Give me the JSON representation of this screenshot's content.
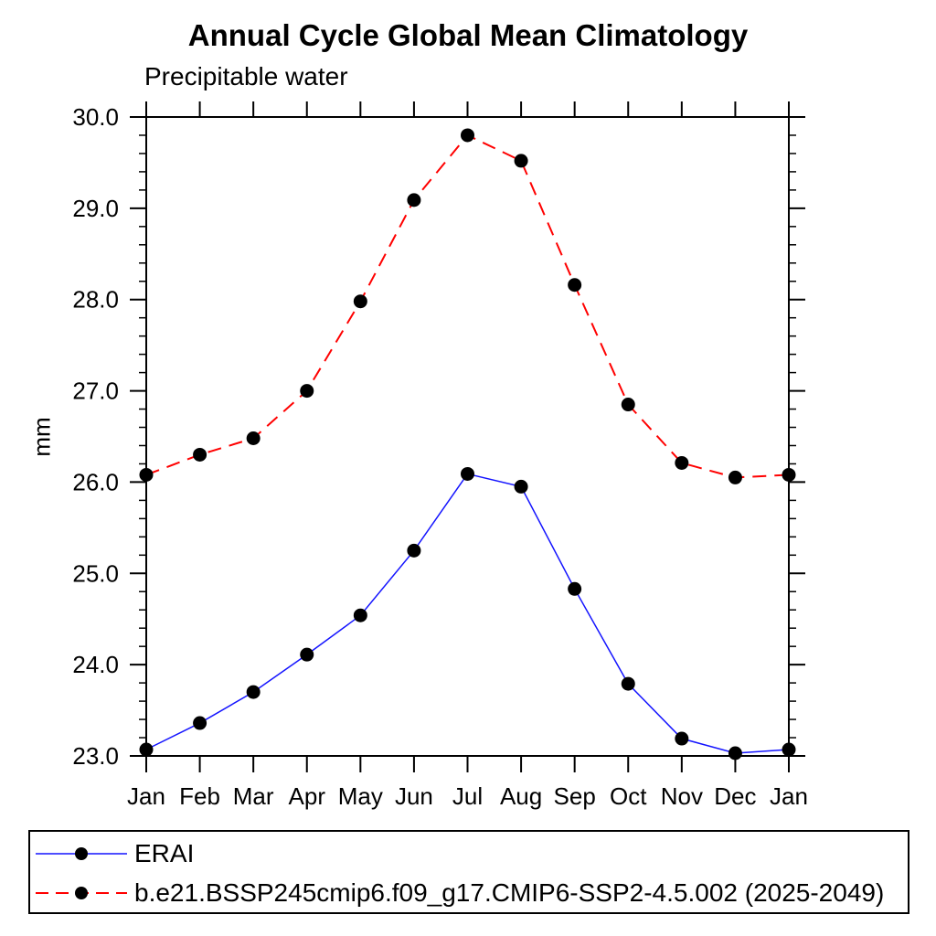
{
  "title": "Annual Cycle Global Mean Climatology",
  "subtitle": "Precipitable water",
  "chart_data": {
    "type": "line",
    "title": "Annual Cycle Global Mean Climatology",
    "subtitle": "Precipitable water",
    "xlabel": "",
    "ylabel": "mm",
    "categories": [
      "Jan",
      "Feb",
      "Mar",
      "Apr",
      "May",
      "Jun",
      "Jul",
      "Aug",
      "Sep",
      "Oct",
      "Nov",
      "Dec",
      "Jan"
    ],
    "series": [
      {
        "name": "ERAI",
        "color": "#1414ff",
        "style": "solid",
        "marker": "filled-circle",
        "marker_color": "#000000",
        "values": [
          23.07,
          23.36,
          23.7,
          24.11,
          24.54,
          25.25,
          26.09,
          25.95,
          24.83,
          23.79,
          23.19,
          23.03,
          23.07
        ]
      },
      {
        "name": "b.e21.BSSP245cmip6.f09_g17.CMIP6-SSP2-4.5.002 (2025-2049)",
        "color": "#ff0000",
        "style": "dashed",
        "marker": "filled-circle",
        "marker_color": "#000000",
        "values": [
          26.08,
          26.3,
          26.48,
          27.0,
          27.98,
          29.09,
          29.8,
          29.52,
          28.16,
          26.85,
          26.21,
          26.05,
          26.08
        ]
      }
    ],
    "ylim": [
      23.0,
      30.0
    ],
    "yticks": [
      23,
      24,
      25,
      26,
      27,
      28,
      29,
      30
    ],
    "ytick_labels": [
      "23.0",
      "24.0",
      "25.0",
      "26.0",
      "27.0",
      "28.0",
      "29.0",
      "30.0"
    ],
    "minor_tick_interval": 0.2,
    "grid": false,
    "frame": "box",
    "legend_position": "bottom"
  }
}
